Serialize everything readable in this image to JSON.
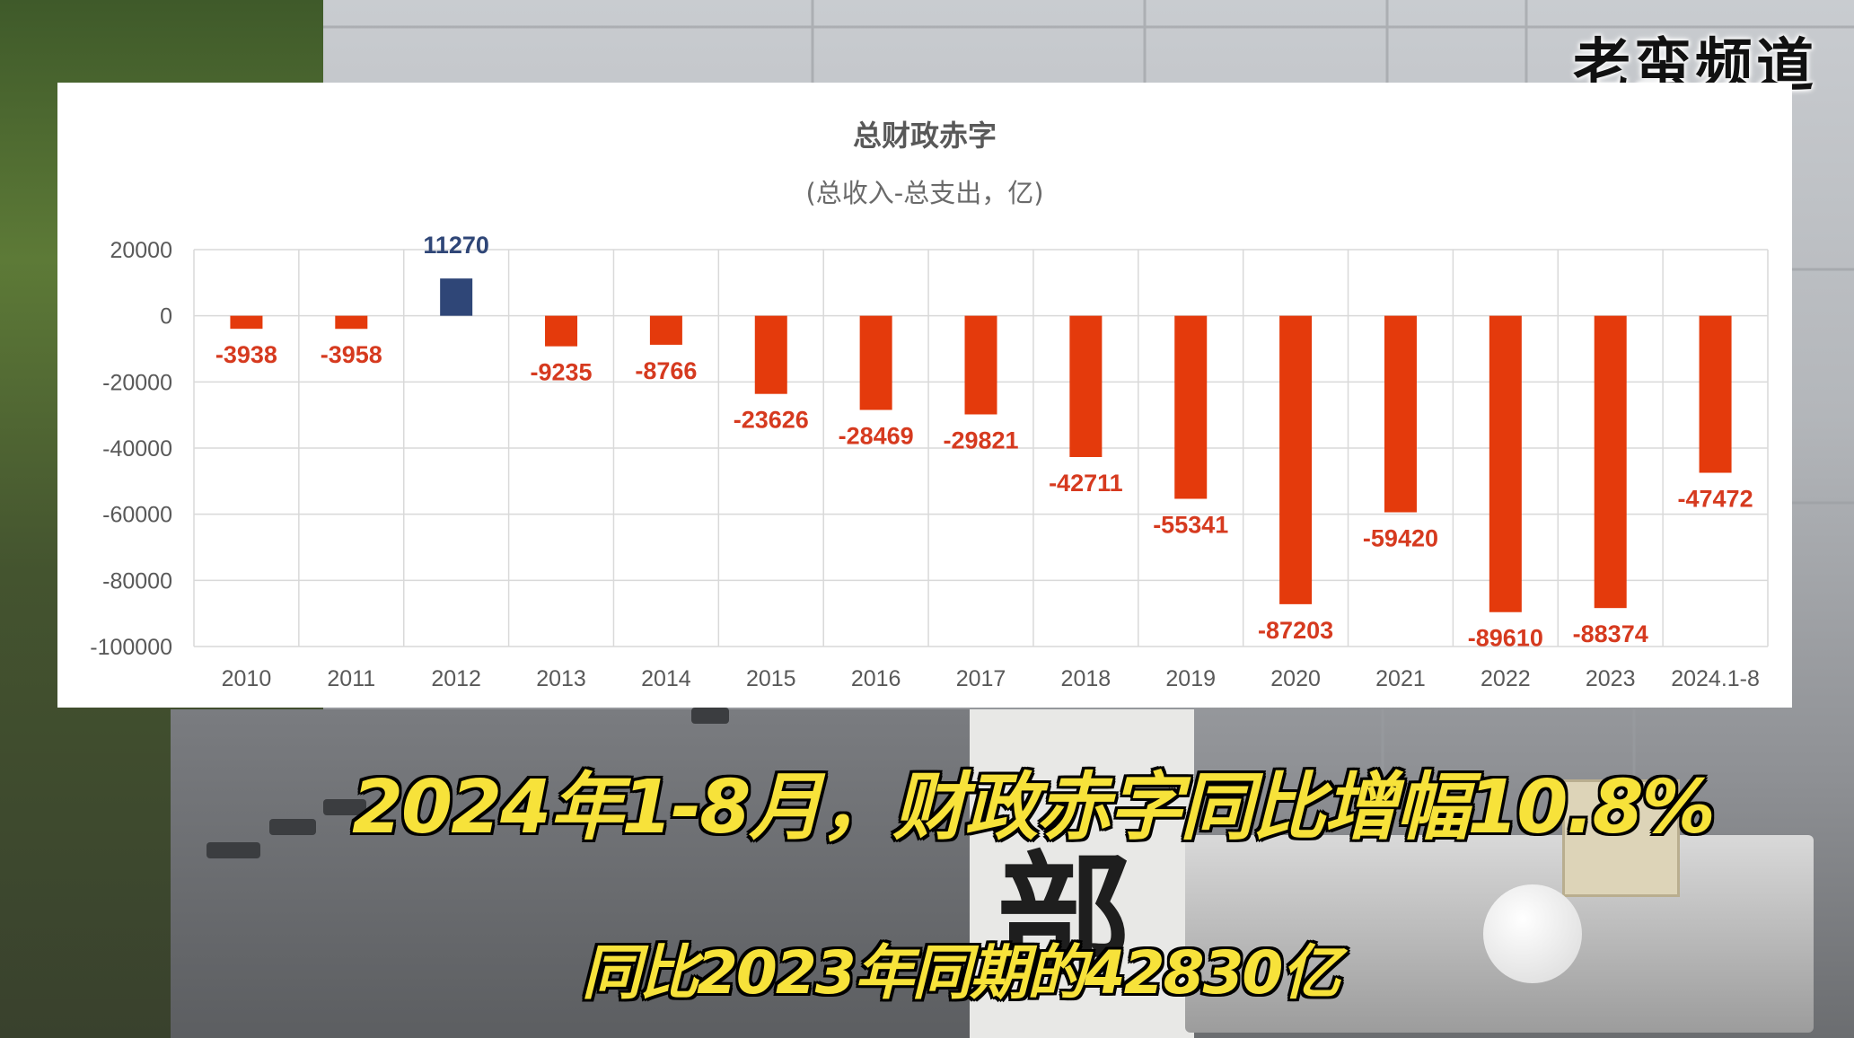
{
  "watermark": "老蛮频道",
  "captions": {
    "line1": "2024年1-8月，财政赤字同比增幅10.8%",
    "line2": "同比2023年同期的42830亿"
  },
  "background": {
    "sign_char": "部"
  },
  "colors": {
    "negative_bar": "#e43a0c",
    "positive_bar": "#2f4677",
    "negative_label": "#d63a1f",
    "positive_label": "#2f4677",
    "caption": "#f7e23a"
  },
  "chart_data": {
    "type": "bar",
    "title": "总财政赤字",
    "subtitle": "(总收入-总支出，亿)",
    "categories": [
      "2010",
      "2011",
      "2012",
      "2013",
      "2014",
      "2015",
      "2016",
      "2017",
      "2018",
      "2019",
      "2020",
      "2021",
      "2022",
      "2023",
      "2024.1-8"
    ],
    "values": [
      -3938,
      -3958,
      11270,
      -9235,
      -8766,
      -23626,
      -28469,
      -29821,
      -42711,
      -55341,
      -87203,
      -59420,
      -89610,
      -88374,
      -47472
    ],
    "data_labels": [
      "-3938",
      "-3958",
      "11270",
      "-9235",
      "-8766",
      "-23626",
      "-28469",
      "-29821",
      "-42711",
      "-55341",
      "-87203",
      "-59420",
      "-89610",
      "-88374",
      "-47472"
    ],
    "ylim": [
      -100000,
      20000
    ],
    "yticks": [
      20000,
      0,
      -20000,
      -40000,
      -60000,
      -80000,
      -100000
    ],
    "ytick_labels": [
      "20000",
      "0",
      "-20000",
      "-40000",
      "-60000",
      "-80000",
      "-100000"
    ],
    "grid": true,
    "legend": "none"
  }
}
